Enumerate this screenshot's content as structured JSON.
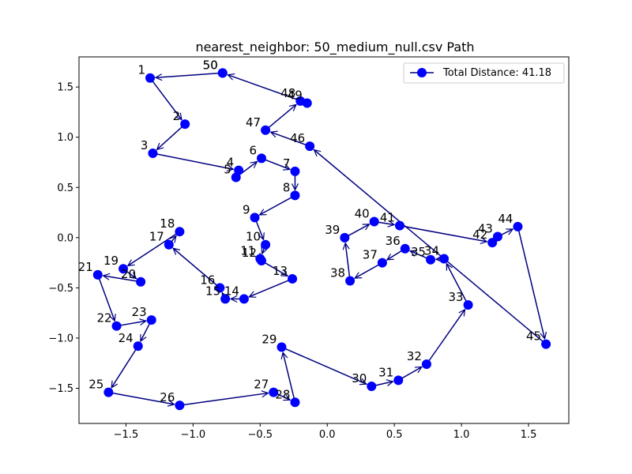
{
  "chart_data": {
    "type": "line",
    "title": "nearest_neighbor: 50_medium_null.csv Path",
    "xlabel": "",
    "ylabel": "",
    "xlim": [
      -1.85,
      1.8
    ],
    "ylim": [
      -1.85,
      1.8
    ],
    "xticks": [
      "−1.5",
      "−1.0",
      "−0.5",
      "0.0",
      "0.5",
      "1.0",
      "1.5"
    ],
    "xtick_values": [
      -1.5,
      -1.0,
      -0.5,
      0.0,
      0.5,
      1.0,
      1.5
    ],
    "yticks": [
      "−1.5",
      "−1.0",
      "−0.5",
      "0.0",
      "0.5",
      "1.0",
      "1.5"
    ],
    "ytick_values": [
      -1.5,
      -1.0,
      -0.5,
      0.0,
      0.5,
      1.0,
      1.5
    ],
    "grid": false,
    "legend_position": "top-right",
    "line_color": "#000080",
    "marker_color": "#0000ff",
    "series": [
      {
        "name": "Total Distance: 41.18",
        "points": [
          {
            "label": "50",
            "x": -0.78,
            "y": 1.64
          },
          {
            "label": "1",
            "x": -1.32,
            "y": 1.59
          },
          {
            "label": "2",
            "x": -1.06,
            "y": 1.13
          },
          {
            "label": "3",
            "x": -1.3,
            "y": 0.84
          },
          {
            "label": "4",
            "x": -0.66,
            "y": 0.67
          },
          {
            "label": "5",
            "x": -0.68,
            "y": 0.6
          },
          {
            "label": "6",
            "x": -0.49,
            "y": 0.79
          },
          {
            "label": "7",
            "x": -0.24,
            "y": 0.66
          },
          {
            "label": "8",
            "x": -0.24,
            "y": 0.42
          },
          {
            "label": "9",
            "x": -0.54,
            "y": 0.2
          },
          {
            "label": "10",
            "x": -0.46,
            "y": -0.07
          },
          {
            "label": "11",
            "x": -0.5,
            "y": -0.21
          },
          {
            "label": "12",
            "x": -0.49,
            "y": -0.23
          },
          {
            "label": "13",
            "x": -0.26,
            "y": -0.41
          },
          {
            "label": "14",
            "x": -0.62,
            "y": -0.61
          },
          {
            "label": "15",
            "x": -0.76,
            "y": -0.61
          },
          {
            "label": "16",
            "x": -0.8,
            "y": -0.5
          },
          {
            "label": "17",
            "x": -1.18,
            "y": -0.07
          },
          {
            "label": "18",
            "x": -1.1,
            "y": 0.06
          },
          {
            "label": "19",
            "x": -1.52,
            "y": -0.31
          },
          {
            "label": "20",
            "x": -1.39,
            "y": -0.44
          },
          {
            "label": "21",
            "x": -1.71,
            "y": -0.37
          },
          {
            "label": "22",
            "x": -1.57,
            "y": -0.88
          },
          {
            "label": "23",
            "x": -1.31,
            "y": -0.82
          },
          {
            "label": "24",
            "x": -1.41,
            "y": -1.08
          },
          {
            "label": "25",
            "x": -1.63,
            "y": -1.54
          },
          {
            "label": "26",
            "x": -1.1,
            "y": -1.67
          },
          {
            "label": "27",
            "x": -0.4,
            "y": -1.54
          },
          {
            "label": "28",
            "x": -0.24,
            "y": -1.64
          },
          {
            "label": "29",
            "x": -0.34,
            "y": -1.09
          },
          {
            "label": "30",
            "x": 0.33,
            "y": -1.48
          },
          {
            "label": "31",
            "x": 0.53,
            "y": -1.42
          },
          {
            "label": "32",
            "x": 0.74,
            "y": -1.26
          },
          {
            "label": "33",
            "x": 1.05,
            "y": -0.67
          },
          {
            "label": "34",
            "x": 0.87,
            "y": -0.21
          },
          {
            "label": "35",
            "x": 0.77,
            "y": -0.22
          },
          {
            "label": "36",
            "x": 0.58,
            "y": -0.11
          },
          {
            "label": "37",
            "x": 0.41,
            "y": -0.25
          },
          {
            "label": "38",
            "x": 0.17,
            "y": -0.43
          },
          {
            "label": "39",
            "x": 0.13,
            "y": 0.0
          },
          {
            "label": "40",
            "x": 0.35,
            "y": 0.16
          },
          {
            "label": "41",
            "x": 0.54,
            "y": 0.12
          },
          {
            "label": "42",
            "x": 1.23,
            "y": -0.05
          },
          {
            "label": "43",
            "x": 1.27,
            "y": 0.01
          },
          {
            "label": "44",
            "x": 1.42,
            "y": 0.11
          },
          {
            "label": "45",
            "x": 1.63,
            "y": -1.06
          },
          {
            "label": "46",
            "x": -0.13,
            "y": 0.91
          },
          {
            "label": "47",
            "x": -0.46,
            "y": 1.07
          },
          {
            "label": "48",
            "x": -0.2,
            "y": 1.36
          },
          {
            "label": "49",
            "x": -0.15,
            "y": 1.34
          },
          {
            "label": "50",
            "x": -0.78,
            "y": 1.64
          }
        ]
      }
    ]
  }
}
